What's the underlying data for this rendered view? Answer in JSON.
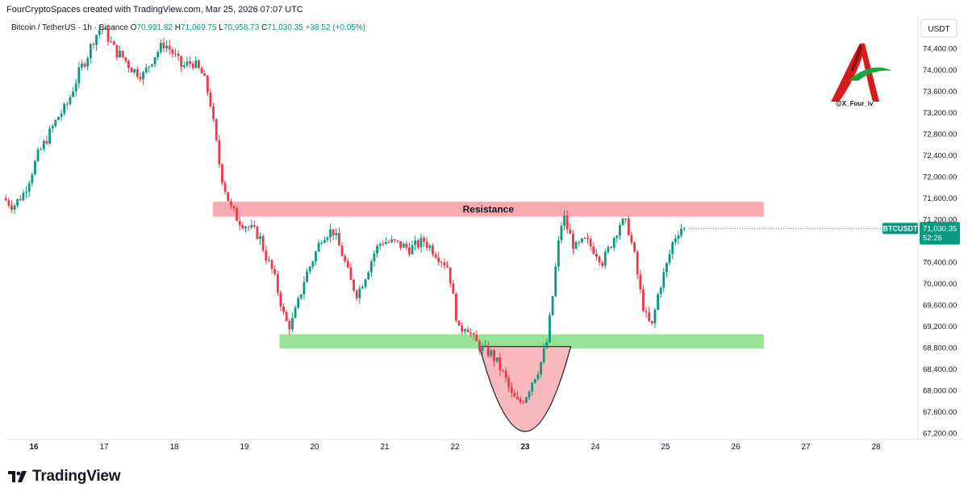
{
  "header": {
    "credit": "FourCryptoSpaces created with TradingView.com, Mar 25, 2026 07:07 UTC"
  },
  "legend": {
    "symbol": "Bitcoin / TetherUS · 1h · Binance",
    "o_label": "O",
    "o_value": "70,991.82",
    "h_label": "H",
    "h_value": "71,069.75",
    "l_label": "L",
    "l_value": "70,958.73",
    "c_label": "C",
    "c_value": "71,030.35",
    "change": "+38.52 (+0.05%)"
  },
  "currency_label": "USDT",
  "price_badge": {
    "ticker": "BTCUSDT",
    "price": "71,030.35",
    "countdown": "52:26"
  },
  "brand": {
    "handle": "@X_Four_iv"
  },
  "footer": {
    "logo_text": "TradingView"
  },
  "colors": {
    "up": "#089981",
    "down": "#f23645",
    "resistance": "#f7a1aa",
    "support": "#8be08b",
    "bowl": "#f7b6b9"
  },
  "chart_data": {
    "type": "candlestick",
    "ylim": [
      67100,
      74900
    ],
    "y_ticks": [
      "74,400.00",
      "74,000.00",
      "73,600.00",
      "73,200.00",
      "72,800.00",
      "72,400.00",
      "72,000.00",
      "71,600.00",
      "71,200.00",
      "70,800.00",
      "70,400.00",
      "70,000.00",
      "69,600.00",
      "69,200.00",
      "68,800.00",
      "68,400.00",
      "68,000.00",
      "67,600.00",
      "67,200.00"
    ],
    "y_tick_values": [
      74400,
      74000,
      73600,
      73200,
      72800,
      72400,
      72000,
      71600,
      71200,
      70800,
      70400,
      70000,
      69600,
      69200,
      68800,
      68400,
      68000,
      67600,
      67200
    ],
    "x_ticks": [
      {
        "label": "16",
        "day": 16,
        "bold": true
      },
      {
        "label": "17",
        "day": 17,
        "bold": false
      },
      {
        "label": "18",
        "day": 18,
        "bold": false
      },
      {
        "label": "19",
        "day": 19,
        "bold": false
      },
      {
        "label": "20",
        "day": 20,
        "bold": false
      },
      {
        "label": "21",
        "day": 21,
        "bold": false
      },
      {
        "label": "22",
        "day": 22,
        "bold": false
      },
      {
        "label": "23",
        "day": 23,
        "bold": true
      },
      {
        "label": "24",
        "day": 24,
        "bold": false
      },
      {
        "label": "25",
        "day": 25,
        "bold": false
      },
      {
        "label": "26",
        "day": 26,
        "bold": false
      },
      {
        "label": "27",
        "day": 27,
        "bold": false
      },
      {
        "label": "28",
        "day": 28,
        "bold": false
      }
    ],
    "x_range_days": [
      15.6,
      28.5
    ],
    "zones": {
      "resistance": {
        "label": "Resistance",
        "y_top": 71530,
        "y_bottom": 71250,
        "day_start": 18.55,
        "day_end": 26.4
      },
      "support": {
        "y_top": 69050,
        "y_bottom": 68780,
        "day_start": 19.5,
        "day_end": 26.4
      }
    },
    "cup": {
      "day_start": 22.35,
      "day_end": 23.65,
      "y_rim": 68820,
      "y_low": 67230
    },
    "last_price": 71030.35,
    "price_path": [
      [
        15.6,
        71600
      ],
      [
        15.75,
        71450
      ],
      [
        15.9,
        71700
      ],
      [
        16.0,
        72050
      ],
      [
        16.1,
        72400
      ],
      [
        16.2,
        72650
      ],
      [
        16.3,
        72900
      ],
      [
        16.4,
        73150
      ],
      [
        16.5,
        73300
      ],
      [
        16.6,
        73650
      ],
      [
        16.7,
        74000
      ],
      [
        16.8,
        74250
      ],
      [
        16.9,
        74600
      ],
      [
        17.0,
        74800
      ],
      [
        17.1,
        74600
      ],
      [
        17.2,
        74350
      ],
      [
        17.3,
        74250
      ],
      [
        17.45,
        74000
      ],
      [
        17.6,
        73900
      ],
      [
        17.75,
        74250
      ],
      [
        17.9,
        74500
      ],
      [
        18.0,
        74350
      ],
      [
        18.15,
        74050
      ],
      [
        18.3,
        74150
      ],
      [
        18.45,
        73900
      ],
      [
        18.55,
        73450
      ],
      [
        18.62,
        72800
      ],
      [
        18.7,
        72100
      ],
      [
        18.78,
        71700
      ],
      [
        18.85,
        71400
      ],
      [
        18.95,
        71200
      ],
      [
        19.1,
        71050
      ],
      [
        19.25,
        70900
      ],
      [
        19.35,
        70500
      ],
      [
        19.45,
        70200
      ],
      [
        19.55,
        69700
      ],
      [
        19.62,
        69300
      ],
      [
        19.7,
        69200
      ],
      [
        19.8,
        69600
      ],
      [
        19.9,
        70100
      ],
      [
        20.05,
        70550
      ],
      [
        20.15,
        70900
      ],
      [
        20.3,
        71000
      ],
      [
        20.45,
        70500
      ],
      [
        20.55,
        70050
      ],
      [
        20.65,
        69800
      ],
      [
        20.75,
        70100
      ],
      [
        20.9,
        70600
      ],
      [
        21.0,
        70800
      ],
      [
        21.2,
        70750
      ],
      [
        21.4,
        70650
      ],
      [
        21.6,
        70800
      ],
      [
        21.75,
        70600
      ],
      [
        21.85,
        70450
      ],
      [
        21.95,
        70300
      ],
      [
        22.02,
        69700
      ],
      [
        22.1,
        69100
      ],
      [
        22.2,
        69250
      ],
      [
        22.3,
        68950
      ],
      [
        22.45,
        68750
      ],
      [
        22.55,
        68700
      ],
      [
        22.65,
        68500
      ],
      [
        22.75,
        68250
      ],
      [
        22.85,
        67900
      ],
      [
        22.95,
        67750
      ],
      [
        23.05,
        67900
      ],
      [
        23.15,
        68200
      ],
      [
        23.25,
        68450
      ],
      [
        23.35,
        68900
      ],
      [
        23.42,
        69600
      ],
      [
        23.5,
        70600
      ],
      [
        23.58,
        71300
      ],
      [
        23.65,
        71000
      ],
      [
        23.75,
        70650
      ],
      [
        23.9,
        70800
      ],
      [
        24.05,
        70600
      ],
      [
        24.15,
        70400
      ],
      [
        24.3,
        70850
      ],
      [
        24.4,
        71150
      ],
      [
        24.5,
        71100
      ],
      [
        24.6,
        70500
      ],
      [
        24.7,
        69700
      ],
      [
        24.78,
        69300
      ],
      [
        24.85,
        69200
      ],
      [
        24.95,
        69900
      ],
      [
        25.05,
        70300
      ],
      [
        25.15,
        70800
      ],
      [
        25.25,
        71050
      ],
      [
        25.3,
        71030
      ]
    ]
  }
}
